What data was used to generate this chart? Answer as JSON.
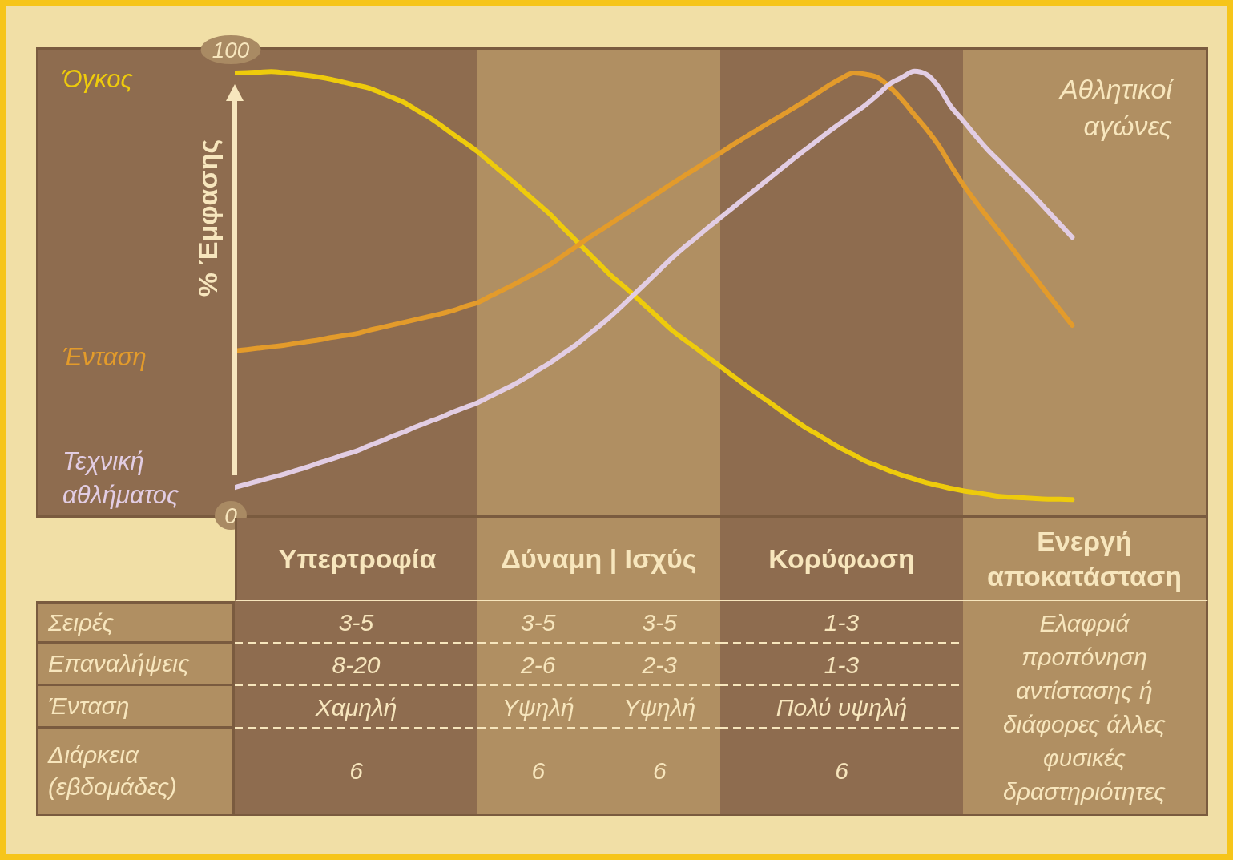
{
  "chart_data": [
    {
      "type": "line",
      "ylabel": "% Έμφασης",
      "categories": [
        null,
        null,
        null,
        null,
        null,
        null,
        null,
        null,
        null,
        null,
        null,
        null,
        null,
        null,
        null,
        null,
        null,
        null,
        null,
        null,
        null,
        null,
        null,
        null,
        null,
        null,
        null,
        null,
        null,
        null,
        null,
        null,
        null,
        null,
        null,
        null,
        null,
        null,
        null,
        null,
        null,
        null,
        null,
        null,
        null,
        null,
        null,
        null,
        null,
        null,
        null,
        null,
        null,
        null,
        null,
        null,
        null,
        null,
        null,
        null,
        null,
        null,
        null,
        null,
        null,
        null,
        null,
        null,
        null,
        null,
        null,
        null,
        null,
        null,
        null,
        null,
        null,
        null,
        null,
        null,
        null
      ],
      "series": [
        {
          "name": "Όγκος",
          "color": "#eecb0c",
          "values": [
            95.0,
            95.1,
            95.2,
            95.3,
            95.1,
            94.8,
            94.5,
            94.1,
            93.6,
            93.0,
            92.4,
            91.8,
            90.8,
            89.7,
            88.6,
            87.0,
            85.5,
            83.7,
            81.8,
            80.0,
            78.1,
            75.9,
            73.7,
            71.5,
            69.2,
            66.9,
            64.6,
            61.9,
            59.3,
            56.7,
            54.1,
            51.5,
            49.3,
            47.0,
            44.6,
            42.2,
            39.8,
            37.8,
            35.9,
            33.9,
            32.0,
            30.0,
            28.1,
            26.2,
            24.4,
            22.5,
            20.7,
            18.9,
            17.4,
            15.8,
            14.3,
            13.0,
            11.6,
            10.6,
            9.5,
            8.6,
            7.8,
            7.0,
            6.4,
            5.8,
            5.3,
            4.9,
            4.5,
            4.1,
            3.9,
            3.8,
            3.6,
            3.5,
            3.5,
            3.4,
            null,
            null,
            null,
            null,
            null,
            null,
            null,
            null,
            null,
            null,
            null
          ]
        },
        {
          "name": "Ένταση",
          "color": "#e39b2b",
          "values": [
            35.3,
            35.6,
            35.9,
            36.2,
            36.5,
            36.9,
            37.3,
            37.7,
            38.2,
            38.6,
            39.0,
            39.7,
            40.3,
            40.9,
            41.5,
            42.1,
            42.7,
            43.3,
            44.0,
            44.9,
            45.7,
            47.0,
            48.3,
            49.6,
            51.0,
            52.4,
            53.9,
            55.7,
            57.5,
            59.3,
            61.0,
            62.7,
            64.4,
            66.1,
            67.8,
            69.5,
            71.2,
            72.9,
            74.5,
            76.2,
            77.8,
            79.5,
            81.1,
            82.7,
            84.3,
            85.8,
            87.4,
            89.0,
            90.7,
            92.4,
            93.9,
            95.0,
            94.7,
            94.0,
            91.9,
            89.2,
            86.0,
            82.9,
            79.4,
            75.1,
            71.1,
            67.5,
            64.1,
            60.8,
            57.5,
            54.1,
            50.8,
            47.4,
            44.1,
            40.8,
            null,
            null,
            null,
            null,
            null,
            null,
            null,
            null,
            null,
            null,
            null
          ]
        },
        {
          "name": "Τεχνική αθλήματος",
          "color": "#e2cde3",
          "values": [
            6.0,
            6.7,
            7.4,
            8.1,
            8.8,
            9.6,
            10.4,
            11.3,
            12.1,
            13.0,
            13.8,
            14.9,
            15.9,
            17.0,
            18.0,
            19.1,
            20.1,
            21.1,
            22.2,
            23.2,
            24.2,
            25.5,
            26.8,
            28.1,
            29.6,
            31.2,
            32.8,
            34.6,
            36.4,
            38.5,
            40.6,
            42.8,
            45.2,
            47.7,
            50.2,
            52.7,
            55.2,
            57.5,
            59.6,
            61.8,
            63.9,
            66.0,
            68.1,
            70.2,
            72.3,
            74.4,
            76.5,
            78.5,
            80.5,
            82.5,
            84.4,
            86.3,
            88.2,
            90.4,
            92.7,
            94.1,
            95.4,
            94.7,
            92.0,
            87.8,
            84.8,
            81.6,
            78.6,
            76.0,
            73.4,
            70.8,
            68.1,
            65.3,
            62.5,
            59.7,
            null,
            null,
            null,
            null,
            null,
            null,
            null,
            null,
            null,
            null,
            null
          ]
        }
      ],
      "ylim": [
        0,
        100
      ],
      "yticks": [
        0,
        100
      ],
      "annotations": [
        "Αθλητικοί αγώνες"
      ],
      "tick_labels": "y",
      "marker": "none",
      "line_style": "solid"
    },
    {
      "type": "other",
      "categories": [
        "Υπερτροφία",
        "Δύναμη | Ισχύς",
        null,
        "Κορύφωση",
        "Ενεργή αποκατάσταση"
      ],
      "y_categories": [
        "Σειρές",
        "Επαναλήψεις",
        "Ένταση",
        "Διάρκεια (εβδομάδες)"
      ],
      "cell_labels": [
        [
          "3-5",
          "3-5",
          "3-5",
          "1-3",
          "Ελαφριά προπόνηση αντίστασης ή διάφορες άλλες φυσικές δραστηριότητες"
        ],
        [
          "8-20",
          "2-6",
          "2-3",
          "1-3",
          null
        ],
        [
          "Χαμηλή",
          "Υψηλή",
          "Υψηλή",
          "Πολύ υψηλή",
          null
        ],
        [
          "6",
          "6",
          "6",
          "6",
          null
        ]
      ]
    }
  ]
}
